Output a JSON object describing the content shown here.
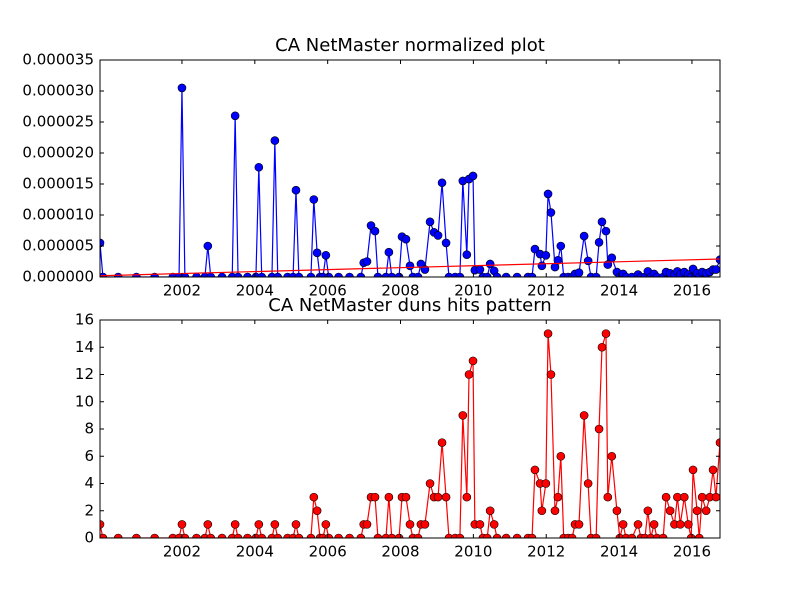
{
  "chart_data": [
    {
      "type": "line",
      "title": "CA NetMaster normalized plot",
      "x": [
        1999.75,
        1999.83,
        2000.25,
        2000.75,
        2001.25,
        2001.75,
        2001.92,
        2002.0,
        2002.08,
        2002.4,
        2002.63,
        2002.71,
        2002.79,
        2003.1,
        2003.38,
        2003.46,
        2003.54,
        2003.8,
        2004.03,
        2004.11,
        2004.19,
        2004.47,
        2004.55,
        2004.63,
        2004.9,
        2005.05,
        2005.13,
        2005.21,
        2005.54,
        2005.62,
        2005.71,
        2005.79,
        2005.87,
        2005.95,
        2006.03,
        2006.3,
        2006.6,
        2006.91,
        2006.99,
        2007.08,
        2007.19,
        2007.3,
        2007.38,
        2007.6,
        2007.68,
        2007.76,
        2007.96,
        2008.04,
        2008.15,
        2008.26,
        2008.34,
        2008.48,
        2008.56,
        2008.67,
        2008.81,
        2008.92,
        2009.03,
        2009.14,
        2009.25,
        2009.33,
        2009.5,
        2009.63,
        2009.71,
        2009.82,
        2009.88,
        2009.99,
        2010.04,
        2010.18,
        2010.26,
        2010.38,
        2010.46,
        2010.57,
        2010.65,
        2010.9,
        2011.2,
        2011.5,
        2011.61,
        2011.69,
        2011.83,
        2011.88,
        2011.99,
        2012.05,
        2012.13,
        2012.24,
        2012.32,
        2012.4,
        2012.48,
        2012.6,
        2012.71,
        2012.79,
        2012.9,
        2013.04,
        2013.15,
        2013.23,
        2013.37,
        2013.45,
        2013.53,
        2013.64,
        2013.69,
        2013.8,
        2013.94,
        2014.02,
        2014.11,
        2014.19,
        2014.35,
        2014.52,
        2014.6,
        2014.71,
        2014.79,
        2014.87,
        2014.96,
        2015.04,
        2015.21,
        2015.29,
        2015.4,
        2015.52,
        2015.6,
        2015.68,
        2015.79,
        2015.9,
        2015.98,
        2016.03,
        2016.14,
        2016.2,
        2016.28,
        2016.39,
        2016.49,
        2016.58,
        2016.66,
        2016.77
      ],
      "series": [
        {
          "color": "#0000ff",
          "markers": true,
          "values": [
            5.5e-06,
            0,
            0,
            0,
            0,
            0,
            0,
            3.05e-05,
            0,
            0,
            0,
            5e-06,
            0,
            0,
            0,
            2.6e-05,
            0,
            0,
            0,
            1.77e-05,
            0,
            0,
            2.2e-05,
            0,
            0,
            0,
            1.4e-05,
            0,
            0,
            1.25e-05,
            3.9e-06,
            0,
            0,
            3.5e-06,
            0,
            0,
            0,
            0,
            2.3e-06,
            2.5e-06,
            8.3e-06,
            7.4e-06,
            0,
            0,
            4e-06,
            0,
            0,
            6.5e-06,
            6.1e-06,
            1.8e-06,
            0,
            0,
            2.1e-06,
            1.2e-06,
            8.9e-06,
            7.2e-06,
            6.7e-06,
            1.52e-05,
            5.5e-06,
            0,
            0,
            0,
            1.55e-05,
            3.6e-06,
            1.58e-05,
            1.63e-05,
            1.1e-06,
            1.2e-06,
            0,
            0,
            2.1e-06,
            1e-06,
            0,
            0,
            0,
            0,
            0,
            4.5e-06,
            3.7e-06,
            1.8e-06,
            3.5e-06,
            1.34e-05,
            1.04e-05,
            1.6e-06,
            2.7e-06,
            5e-06,
            0,
            0,
            0,
            5e-07,
            7e-07,
            6.6e-06,
            2.6e-06,
            0,
            0,
            5.6e-06,
            8.9e-06,
            7.4e-06,
            2e-06,
            3.1e-06,
            8e-07,
            0,
            5e-07,
            0,
            0,
            4e-07,
            0,
            0,
            9e-07,
            0,
            5e-07,
            0,
            0,
            8e-07,
            6e-07,
            4e-07,
            9e-07,
            4e-07,
            8e-07,
            4e-07,
            0,
            1.3e-06,
            6e-07,
            0,
            8e-07,
            6e-07,
            8e-07,
            1.2e-06,
            1.2e-06,
            2.8e-06
          ]
        },
        {
          "color": "#ff0000",
          "markers": false,
          "x": [
            1999.75,
            2016.77
          ],
          "values": [
            2e-07,
            2.9e-06
          ]
        }
      ],
      "xlim": [
        1999.75,
        2016.77
      ],
      "xticks": [
        2002,
        2004,
        2006,
        2008,
        2010,
        2012,
        2014,
        2016
      ],
      "ylim": [
        0,
        3.5e-05
      ],
      "yticks": [
        {
          "value": 0,
          "label": "0.000000"
        },
        {
          "value": 5e-06,
          "label": "0.000005"
        },
        {
          "value": 1e-05,
          "label": "0.000010"
        },
        {
          "value": 1.5e-05,
          "label": "0.000015"
        },
        {
          "value": 2e-05,
          "label": "0.000020"
        },
        {
          "value": 2.5e-05,
          "label": "0.000025"
        },
        {
          "value": 3e-05,
          "label": "0.000030"
        },
        {
          "value": 3.5e-05,
          "label": "0.000035"
        }
      ]
    },
    {
      "type": "line",
      "title": "CA NetMaster duns hits pattern",
      "x": [
        1999.75,
        1999.83,
        2000.25,
        2000.75,
        2001.25,
        2001.75,
        2001.92,
        2002.0,
        2002.08,
        2002.4,
        2002.63,
        2002.71,
        2002.79,
        2003.1,
        2003.38,
        2003.46,
        2003.54,
        2003.8,
        2004.03,
        2004.11,
        2004.19,
        2004.47,
        2004.55,
        2004.63,
        2004.9,
        2005.05,
        2005.13,
        2005.21,
        2005.54,
        2005.62,
        2005.71,
        2005.79,
        2005.87,
        2005.95,
        2006.03,
        2006.3,
        2006.6,
        2006.91,
        2006.99,
        2007.08,
        2007.19,
        2007.3,
        2007.38,
        2007.6,
        2007.68,
        2007.76,
        2007.96,
        2008.04,
        2008.15,
        2008.26,
        2008.34,
        2008.48,
        2008.56,
        2008.67,
        2008.81,
        2008.92,
        2009.03,
        2009.14,
        2009.25,
        2009.33,
        2009.5,
        2009.63,
        2009.71,
        2009.82,
        2009.88,
        2009.99,
        2010.04,
        2010.18,
        2010.26,
        2010.38,
        2010.46,
        2010.57,
        2010.65,
        2010.9,
        2011.2,
        2011.5,
        2011.61,
        2011.69,
        2011.83,
        2011.88,
        2011.99,
        2012.05,
        2012.13,
        2012.24,
        2012.32,
        2012.4,
        2012.48,
        2012.6,
        2012.71,
        2012.79,
        2012.9,
        2013.04,
        2013.15,
        2013.23,
        2013.37,
        2013.45,
        2013.53,
        2013.64,
        2013.69,
        2013.8,
        2013.94,
        2014.02,
        2014.11,
        2014.19,
        2014.35,
        2014.52,
        2014.6,
        2014.71,
        2014.79,
        2014.87,
        2014.96,
        2015.04,
        2015.21,
        2015.29,
        2015.4,
        2015.52,
        2015.6,
        2015.68,
        2015.79,
        2015.9,
        2015.98,
        2016.03,
        2016.14,
        2016.2,
        2016.28,
        2016.39,
        2016.49,
        2016.58,
        2016.66,
        2016.77
      ],
      "series": [
        {
          "color": "#ff0000",
          "markers": true,
          "values": [
            1,
            0,
            0,
            0,
            0,
            0,
            0,
            1,
            0,
            0,
            0,
            1,
            0,
            0,
            0,
            1,
            0,
            0,
            0,
            1,
            0,
            0,
            1,
            0,
            0,
            0,
            1,
            0,
            0,
            3,
            2,
            0,
            0,
            1,
            0,
            0,
            0,
            0,
            1,
            1,
            3,
            3,
            0,
            0,
            3,
            0,
            0,
            3,
            3,
            1,
            0,
            0,
            1,
            1,
            4,
            3,
            3,
            7,
            3,
            0,
            0,
            0,
            9,
            3,
            12,
            13,
            1,
            1,
            0,
            0,
            2,
            1,
            0,
            0,
            0,
            0,
            0,
            5,
            4,
            2,
            4,
            15,
            12,
            2,
            3,
            6,
            0,
            0,
            0,
            1,
            1,
            9,
            4,
            0,
            0,
            8,
            14,
            15,
            3,
            6,
            2,
            0,
            1,
            0,
            0,
            1,
            0,
            0,
            2,
            0,
            1,
            0,
            0,
            3,
            2,
            1,
            3,
            1,
            3,
            1,
            0,
            5,
            2,
            0,
            3,
            2,
            3,
            5,
            3,
            7
          ]
        }
      ],
      "xlim": [
        1999.75,
        2016.77
      ],
      "xticks": [
        2002,
        2004,
        2006,
        2008,
        2010,
        2012,
        2014,
        2016
      ],
      "ylim": [
        0,
        16
      ],
      "yticks": [
        0,
        2,
        4,
        6,
        8,
        10,
        12,
        14,
        16
      ]
    }
  ]
}
